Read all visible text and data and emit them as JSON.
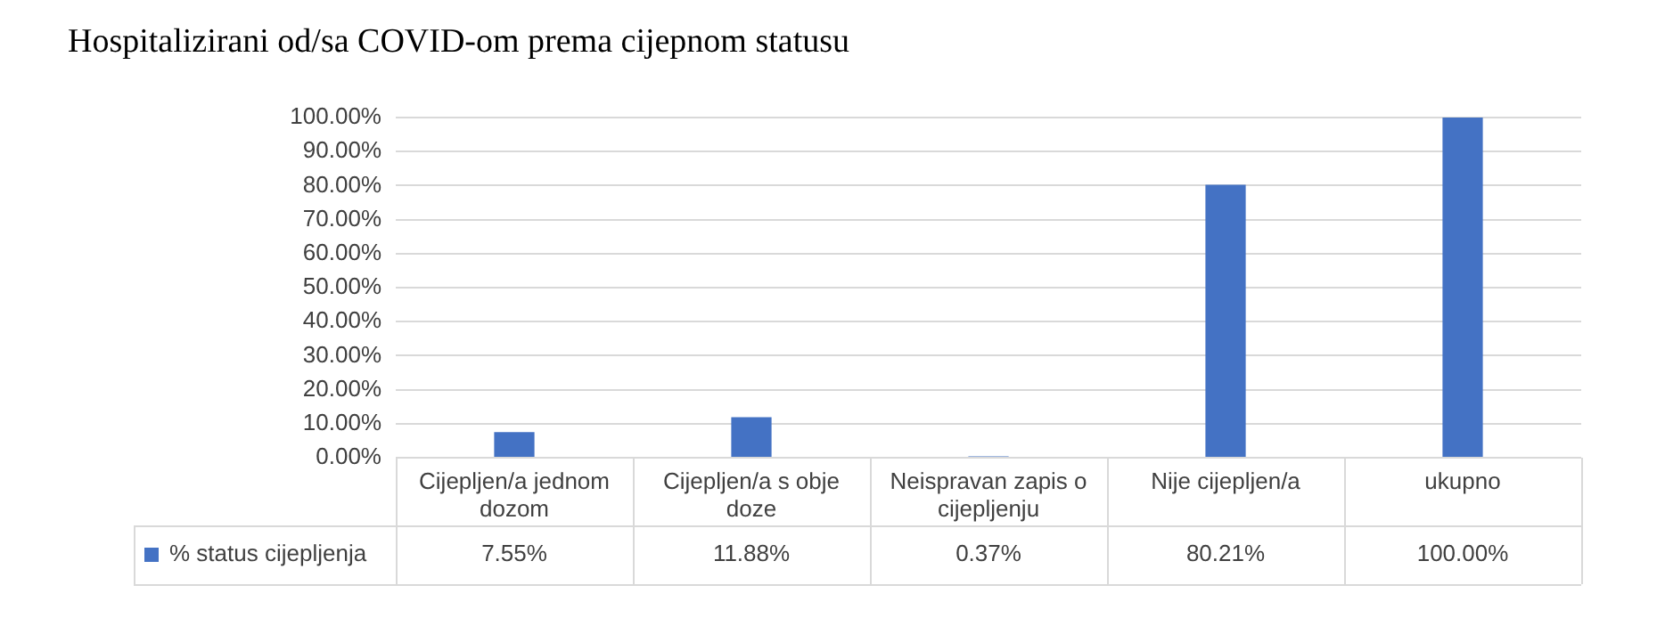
{
  "chart_data": {
    "type": "bar",
    "title": "Hospitalizirani od/sa COVID-om prema cijepnom statusu",
    "categories": [
      "Cijepljen/a jednom dozom",
      "Cijepljen/a s obje doze",
      "Neispravan zapis o cijepljenju",
      "Nije cijepljen/a",
      "ukupno"
    ],
    "series": [
      {
        "name": "% status cijepljenja",
        "color": "#4472c4",
        "values": [
          7.55,
          11.88,
          0.37,
          80.21,
          100
        ],
        "value_labels": [
          "7.55%",
          "11.88%",
          "0.37%",
          "80.21%",
          "100.00%"
        ]
      }
    ],
    "ylim": [
      0,
      100
    ],
    "yticks": [
      {
        "value": 0,
        "label": "0.00%"
      },
      {
        "value": 10,
        "label": "10.00%"
      },
      {
        "value": 20,
        "label": "20.00%"
      },
      {
        "value": 30,
        "label": "30.00%"
      },
      {
        "value": 40,
        "label": "40.00%"
      },
      {
        "value": 50,
        "label": "50.00%"
      },
      {
        "value": 60,
        "label": "60.00%"
      },
      {
        "value": 70,
        "label": "70.00%"
      },
      {
        "value": 80,
        "label": "80.00%"
      },
      {
        "value": 90,
        "label": "90.00%"
      },
      {
        "value": 100,
        "label": "100.00%"
      }
    ],
    "grid": "y"
  }
}
